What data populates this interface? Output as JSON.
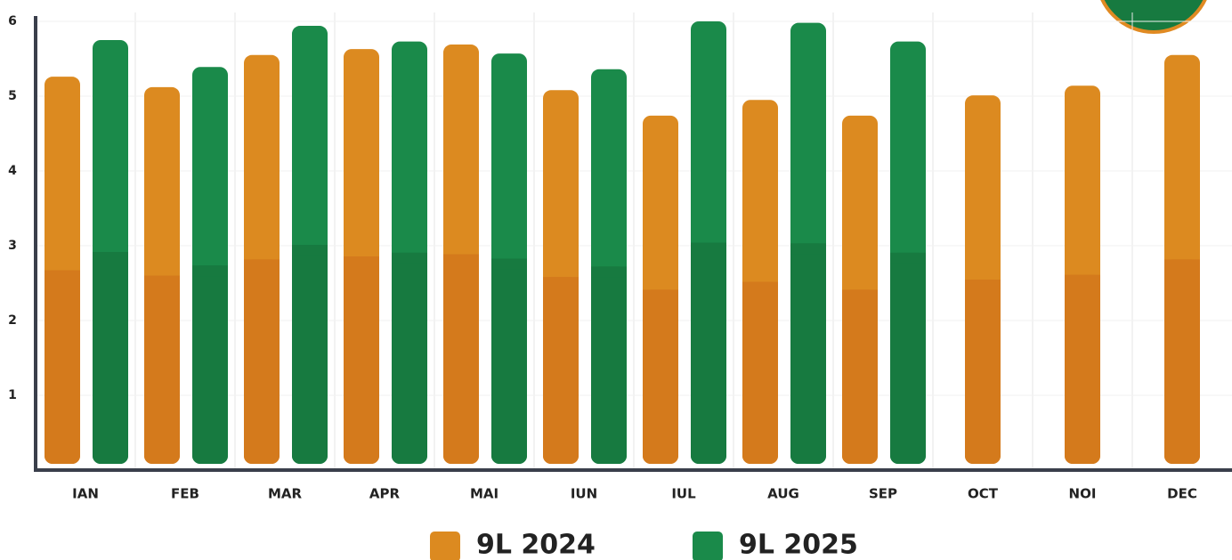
{
  "chart_data": {
    "type": "bar",
    "categories": [
      "IAN",
      "FEB",
      "MAR",
      "APR",
      "MAI",
      "IUN",
      "IUL",
      "AUG",
      "SEP",
      "OCT",
      "NOI",
      "DEC"
    ],
    "series": [
      {
        "name": "9L 2024",
        "color": "#dc8a20",
        "values": [
          5.26,
          5.12,
          5.55,
          5.63,
          5.69,
          5.08,
          4.74,
          4.95,
          4.74,
          5.01,
          5.14,
          5.55
        ]
      },
      {
        "name": "9L 2025",
        "color": "#1a8a4a",
        "values": [
          5.75,
          5.39,
          5.94,
          5.73,
          5.57,
          5.36,
          6.0,
          5.98,
          5.73,
          null,
          null,
          null
        ]
      }
    ],
    "ylim": [
      0,
      6
    ],
    "yticks": [
      1,
      2,
      3,
      4,
      5,
      6
    ],
    "grid": true
  }
}
